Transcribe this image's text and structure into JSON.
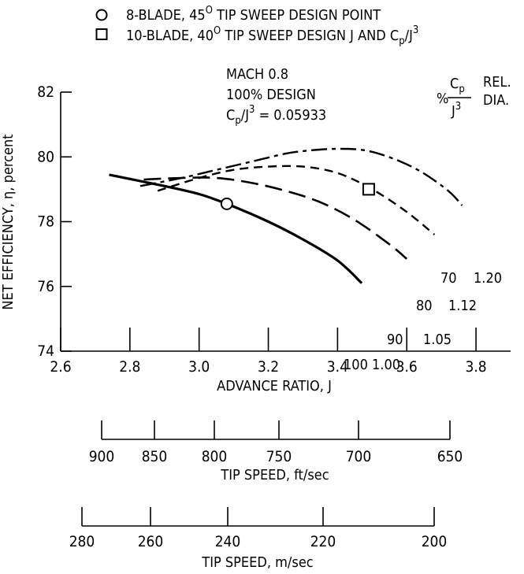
{
  "legend": [
    {
      "marker": "circle",
      "text": "8-BLADE, 45",
      "sup": "O",
      "rest": " TIP SWEEP DESIGN POINT"
    },
    {
      "marker": "square",
      "text": "10-BLADE, 40",
      "sup": "O",
      "rest": " TIP SWEEP DESIGN J AND C",
      "sub": "p",
      "tail": "/J",
      "sup2": "3"
    }
  ],
  "annotation": {
    "line1": "MACH 0.8",
    "line2": "100% DESIGN",
    "line3_pre": "C",
    "line3_sub": "p",
    "line3_mid": "/J",
    "line3_sup": "3",
    "line3_post": " = 0.05933"
  },
  "curve_header": {
    "pct": "%",
    "frac_top": "C",
    "frac_top_sub": "p",
    "frac_bottom": "J",
    "frac_bottom_sup": "3",
    "rel": "REL.",
    "dia": "DIA."
  },
  "chart_data": {
    "type": "line",
    "xlabel": "ADVANCE RATIO, J",
    "ylabel": "NET EFFICIENCY, η, percent",
    "xlim": [
      2.6,
      3.9
    ],
    "ylim": [
      74,
      82
    ],
    "xticks": [
      2.6,
      2.8,
      3.0,
      3.2,
      3.4,
      3.6,
      3.8
    ],
    "xtick_labels": [
      "2.6",
      "2.8",
      "3.0",
      "3.2",
      "3.4",
      "3.6",
      "3.8"
    ],
    "yticks": [
      74,
      76,
      78,
      80,
      82
    ],
    "ytick_labels": [
      "74",
      "76",
      "78",
      "80",
      "82"
    ],
    "series": [
      {
        "pct": "100",
        "dia": "1.00",
        "style": "solid",
        "x": [
          2.74,
          2.9,
          3.0,
          3.08,
          3.2,
          3.3,
          3.4,
          3.47
        ],
        "y": [
          79.45,
          79.1,
          78.85,
          78.55,
          78.0,
          77.45,
          76.8,
          76.1
        ]
      },
      {
        "pct": "90",
        "dia": "1.05",
        "style": "long-dash",
        "x": [
          2.84,
          2.95,
          3.05,
          3.15,
          3.25,
          3.35,
          3.45,
          3.55,
          3.6
        ],
        "y": [
          79.3,
          79.35,
          79.35,
          79.2,
          78.95,
          78.6,
          78.05,
          77.3,
          76.85
        ]
      },
      {
        "pct": "80",
        "dia": "1.12",
        "style": "short-dash",
        "x": [
          2.88,
          3.0,
          3.1,
          3.2,
          3.3,
          3.4,
          3.5,
          3.6,
          3.68
        ],
        "y": [
          78.95,
          79.35,
          79.6,
          79.7,
          79.7,
          79.5,
          79.0,
          78.3,
          77.6
        ]
      },
      {
        "pct": "70",
        "dia": "1.20",
        "style": "dash-dot",
        "x": [
          2.83,
          2.95,
          3.05,
          3.15,
          3.25,
          3.32,
          3.4,
          3.48,
          3.56,
          3.64,
          3.72,
          3.76
        ],
        "y": [
          79.1,
          79.35,
          79.6,
          79.85,
          80.1,
          80.2,
          80.25,
          80.2,
          79.95,
          79.55,
          78.95,
          78.5
        ]
      }
    ],
    "design_points": [
      {
        "marker": "circle",
        "x": 3.08,
        "y": 78.55
      },
      {
        "marker": "square",
        "x": 3.49,
        "y": 79.0
      }
    ],
    "secondary_axes": [
      {
        "title": "TIP SPEED, ft/sec",
        "labels": [
          "900",
          "850",
          "800",
          "750",
          "700",
          "650"
        ]
      },
      {
        "title": "TIP SPEED, m/sec",
        "labels": [
          "280",
          "260",
          "240",
          "220",
          "200"
        ]
      }
    ]
  }
}
